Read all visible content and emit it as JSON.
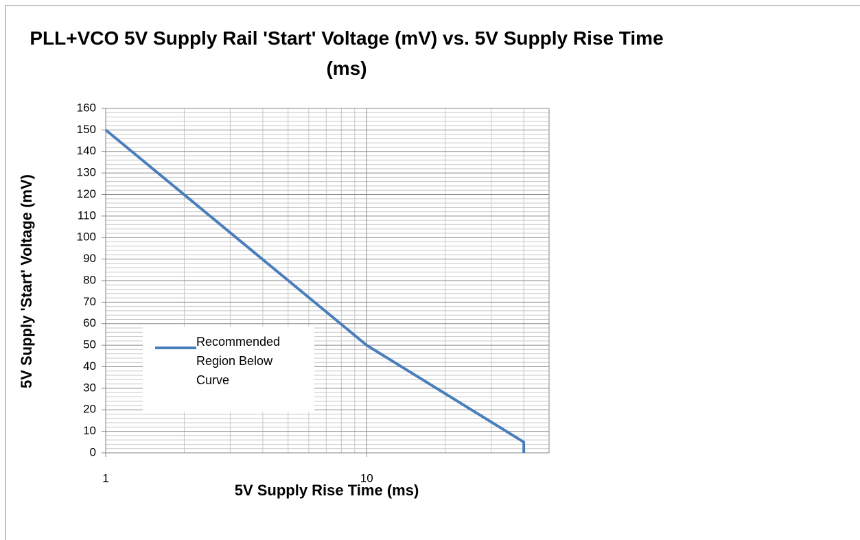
{
  "chart_data": {
    "type": "line",
    "title": "PLL+VCO 5V Supply Rail 'Start' Voltage (mV)  vs. 5V Supply Rise Time (ms)",
    "x_label": "5V Supply Rise Time (ms)",
    "y_label": "5V Supply 'Start' Voltage (mV)",
    "x": [
      1,
      10,
      40,
      40
    ],
    "series": [
      {
        "name": "Recommended Region Below Curve",
        "color": "#4a7ebb",
        "values": [
          150,
          50,
          5,
          0
        ]
      }
    ],
    "x_log": true,
    "xlim": [
      1,
      50
    ],
    "xticks": [
      1,
      10
    ],
    "x_minor_grid": [
      2,
      3,
      4,
      5,
      6,
      7,
      8,
      9,
      20,
      30,
      40,
      50
    ],
    "ylim": [
      0,
      160
    ],
    "yticks": [
      0,
      10,
      20,
      30,
      40,
      50,
      60,
      70,
      80,
      90,
      100,
      110,
      120,
      130,
      140,
      150,
      160
    ],
    "y_minor_grid": [
      2,
      4,
      6,
      8,
      12,
      14,
      16,
      18,
      22,
      24,
      26,
      28,
      32,
      34,
      36,
      38,
      42,
      44,
      46,
      48,
      52,
      54,
      56,
      58,
      62,
      64,
      66,
      68,
      72,
      74,
      76,
      78,
      82,
      84,
      86,
      88,
      92,
      94,
      96,
      98,
      102,
      104,
      106,
      108,
      112,
      114,
      116,
      118,
      122,
      124,
      126,
      128,
      132,
      134,
      136,
      138,
      142,
      144,
      146,
      148,
      152,
      154,
      156,
      158
    ],
    "grid": true,
    "legend": "lower-left"
  }
}
